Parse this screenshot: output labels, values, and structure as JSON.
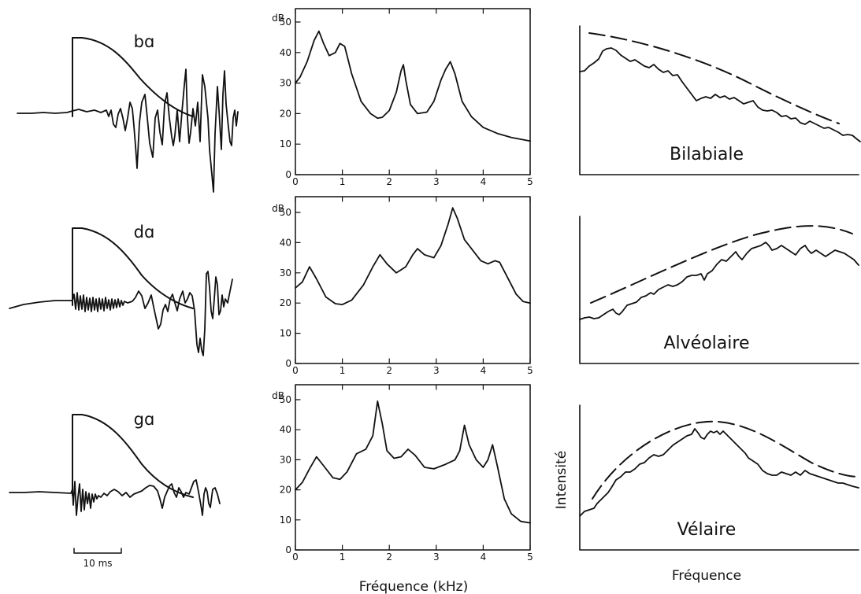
{
  "waveforms": [
    {
      "syllable": "bɑ"
    },
    {
      "syllable": "dɑ"
    },
    {
      "syllable": "gɑ"
    }
  ],
  "scale_bar": {
    "label": "10 ms"
  },
  "spectra": {
    "y_unit": "dB",
    "x_ticks": [
      "0",
      "1",
      "2",
      "3",
      "4",
      "5"
    ],
    "y_ticks": [
      "0",
      "10",
      "20",
      "30",
      "40",
      "50"
    ],
    "xlabel": "Fréquence (kHz)"
  },
  "templates": {
    "ylabel": "Intensité",
    "xlabel": "Fréquence",
    "places": [
      "Bilabiale",
      "Alvéolaire",
      "Vélaire"
    ]
  },
  "chart_data": [
    {
      "type": "line",
      "name": "bɑ",
      "xlabel": "Fréquence (kHz)",
      "ylabel": "dB",
      "xlim": [
        0,
        5
      ],
      "ylim": [
        0,
        50
      ],
      "series": [
        {
          "x": [
            0,
            0.1,
            0.25,
            0.4,
            0.5,
            0.6,
            0.72,
            0.85,
            0.95,
            1.05,
            1.2,
            1.4,
            1.6,
            1.75,
            1.85,
            2.0,
            2.15,
            2.25,
            2.3,
            2.35,
            2.45,
            2.6,
            2.8,
            2.95,
            3.1,
            3.2,
            3.3,
            3.4,
            3.55,
            3.75,
            4.0,
            4.3,
            4.6,
            5.0
          ],
          "y": [
            30,
            32,
            37,
            44,
            47,
            43,
            39,
            40,
            43,
            42,
            33,
            24,
            20,
            18.5,
            18.8,
            21,
            27,
            34,
            36,
            31,
            23,
            20,
            20.5,
            24,
            31,
            34.5,
            37,
            33,
            24,
            19,
            15.5,
            13.5,
            12.2,
            11
          ]
        }
      ]
    },
    {
      "type": "line",
      "name": "dɑ",
      "xlabel": "Fréquence (kHz)",
      "ylabel": "dB",
      "xlim": [
        0,
        5
      ],
      "ylim": [
        0,
        50
      ],
      "series": [
        {
          "x": [
            0,
            0.15,
            0.3,
            0.45,
            0.65,
            0.85,
            1.0,
            1.2,
            1.45,
            1.65,
            1.8,
            1.95,
            2.15,
            2.35,
            2.5,
            2.6,
            2.75,
            2.95,
            3.1,
            3.25,
            3.35,
            3.45,
            3.6,
            3.8,
            3.95,
            4.1,
            4.25,
            4.35,
            4.5,
            4.7,
            4.85,
            5.0
          ],
          "y": [
            25,
            27,
            32,
            28,
            22,
            19.8,
            19.5,
            21,
            26,
            32,
            36,
            33,
            30,
            32,
            36,
            38,
            36,
            35,
            39,
            46,
            51.5,
            48,
            41,
            37,
            34,
            33,
            34,
            33.5,
            29,
            23,
            20.5,
            20
          ]
        }
      ]
    },
    {
      "type": "line",
      "name": "gɑ",
      "xlabel": "Fréquence (kHz)",
      "ylabel": "dB",
      "xlim": [
        0,
        5
      ],
      "ylim": [
        0,
        50
      ],
      "series": [
        {
          "x": [
            0,
            0.15,
            0.3,
            0.45,
            0.6,
            0.8,
            0.95,
            1.1,
            1.3,
            1.5,
            1.65,
            1.75,
            1.85,
            1.95,
            2.1,
            2.25,
            2.4,
            2.55,
            2.75,
            2.95,
            3.2,
            3.4,
            3.5,
            3.6,
            3.7,
            3.85,
            4.0,
            4.1,
            4.2,
            4.3,
            4.45,
            4.6,
            4.8,
            5.0
          ],
          "y": [
            20,
            22.5,
            27,
            31,
            28,
            24,
            23.5,
            26,
            32,
            33.5,
            38,
            49.5,
            42,
            33,
            30.5,
            31,
            33.5,
            31.5,
            27.5,
            27,
            28.5,
            30,
            33,
            41.5,
            35,
            30,
            27.5,
            30,
            35,
            28,
            17,
            12,
            9.5,
            9
          ]
        }
      ]
    }
  ]
}
